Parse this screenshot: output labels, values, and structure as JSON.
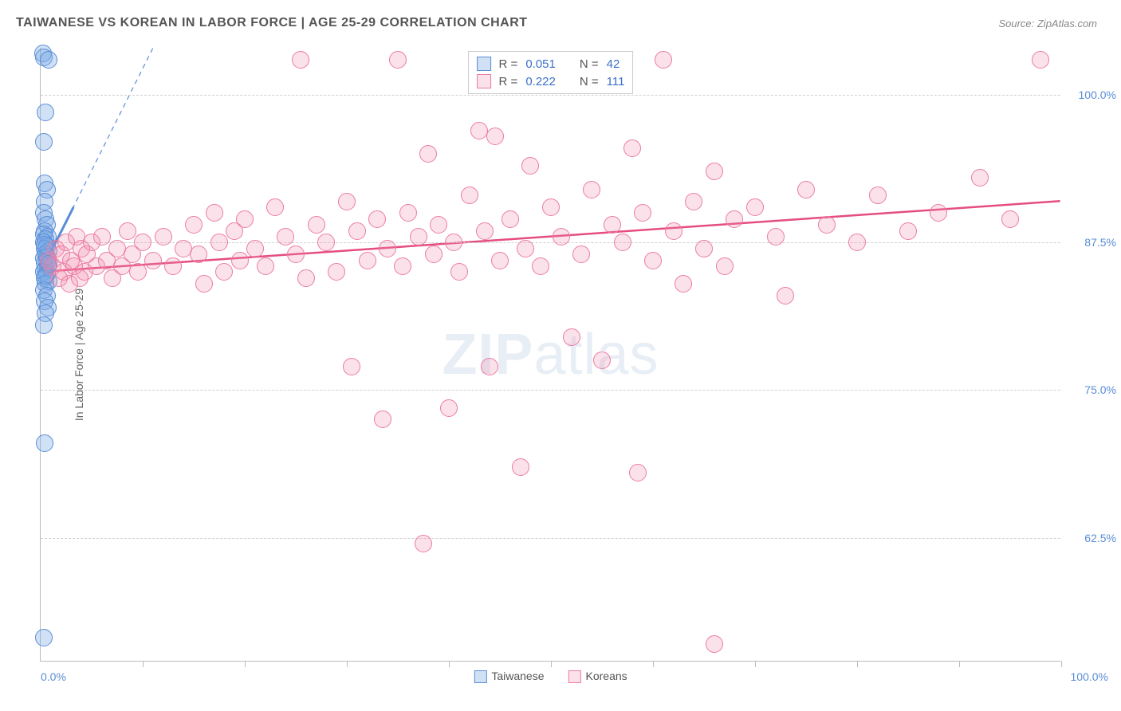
{
  "title": "TAIWANESE VS KOREAN IN LABOR FORCE | AGE 25-29 CORRELATION CHART",
  "source": "Source: ZipAtlas.com",
  "watermark": {
    "part1": "ZIP",
    "part2": "atlas"
  },
  "chart": {
    "type": "scatter",
    "y_axis_title": "In Labor Force | Age 25-29",
    "xlim": [
      0,
      100
    ],
    "ylim": [
      52,
      104
    ],
    "marker_size": 22,
    "background_color": "#ffffff",
    "grid_color": "#d0d0d0",
    "axis_color": "#bbbbbb",
    "tick_label_color": "#5b8dd6",
    "y_ticks": [
      {
        "value": 62.5,
        "label": "62.5%"
      },
      {
        "value": 75.0,
        "label": "75.0%"
      },
      {
        "value": 87.5,
        "label": "87.5%"
      },
      {
        "value": 100.0,
        "label": "100.0%"
      }
    ],
    "x_tick_positions": [
      10,
      20,
      30,
      40,
      50,
      60,
      70,
      80,
      90,
      100
    ],
    "x_axis_label_left": "0.0%",
    "x_axis_label_right": "100.0%",
    "series": [
      {
        "name": "Taiwanese",
        "color_fill": "rgba(120,170,230,0.35)",
        "color_stroke": "#5b8dd6",
        "R": "0.051",
        "N": "42",
        "trend": {
          "x1": 0,
          "y1": 85.0,
          "x2_dashed": 11,
          "y2_dashed": 104,
          "solid_x2": 3.2,
          "solid_y2": 90.5,
          "stroke": "#5b8dd6",
          "width": 2
        },
        "points": [
          [
            0.2,
            103.5
          ],
          [
            0.3,
            103.2
          ],
          [
            0.8,
            103.0
          ],
          [
            0.5,
            98.5
          ],
          [
            0.3,
            96.0
          ],
          [
            0.4,
            92.5
          ],
          [
            0.6,
            92.0
          ],
          [
            0.4,
            91.0
          ],
          [
            0.3,
            90.0
          ],
          [
            0.5,
            89.5
          ],
          [
            0.6,
            89.0
          ],
          [
            0.4,
            88.5
          ],
          [
            0.3,
            88.2
          ],
          [
            0.7,
            88.0
          ],
          [
            0.5,
            87.8
          ],
          [
            0.3,
            87.5
          ],
          [
            0.6,
            87.2
          ],
          [
            0.4,
            87.0
          ],
          [
            0.8,
            86.8
          ],
          [
            0.5,
            86.5
          ],
          [
            0.3,
            86.2
          ],
          [
            0.6,
            86.0
          ],
          [
            0.4,
            85.8
          ],
          [
            0.7,
            85.5
          ],
          [
            0.5,
            85.2
          ],
          [
            0.3,
            85.0
          ],
          [
            0.6,
            84.8
          ],
          [
            0.4,
            84.5
          ],
          [
            0.8,
            84.2
          ],
          [
            0.5,
            84.0
          ],
          [
            0.3,
            83.5
          ],
          [
            0.6,
            83.0
          ],
          [
            0.4,
            82.5
          ],
          [
            0.7,
            82.0
          ],
          [
            0.5,
            81.5
          ],
          [
            0.3,
            80.5
          ],
          [
            0.6,
            86.3
          ],
          [
            0.4,
            87.3
          ],
          [
            0.8,
            85.7
          ],
          [
            0.5,
            84.7
          ],
          [
            0.4,
            70.5
          ],
          [
            0.3,
            54.0
          ]
        ]
      },
      {
        "name": "Koreans",
        "color_fill": "rgba(240,140,170,0.25)",
        "color_stroke": "#ec7ba3",
        "R": "0.222",
        "N": "111",
        "trend": {
          "x1": 0,
          "y1": 85.0,
          "x2": 100,
          "y2": 91.0,
          "stroke": "#e54d82",
          "width": 2.5
        },
        "points": [
          [
            0.8,
            86.0
          ],
          [
            1.2,
            85.5
          ],
          [
            1.5,
            87.0
          ],
          [
            1.8,
            84.5
          ],
          [
            2.0,
            86.5
          ],
          [
            2.3,
            85.0
          ],
          [
            2.5,
            87.5
          ],
          [
            2.8,
            84.0
          ],
          [
            3.0,
            86.0
          ],
          [
            3.3,
            85.5
          ],
          [
            3.5,
            88.0
          ],
          [
            3.8,
            84.5
          ],
          [
            4.0,
            87.0
          ],
          [
            4.3,
            85.0
          ],
          [
            4.5,
            86.5
          ],
          [
            5.0,
            87.5
          ],
          [
            5.5,
            85.5
          ],
          [
            6.0,
            88.0
          ],
          [
            6.5,
            86.0
          ],
          [
            7.0,
            84.5
          ],
          [
            7.5,
            87.0
          ],
          [
            8.0,
            85.5
          ],
          [
            8.5,
            88.5
          ],
          [
            9.0,
            86.5
          ],
          [
            9.5,
            85.0
          ],
          [
            10.0,
            87.5
          ],
          [
            11.0,
            86.0
          ],
          [
            12.0,
            88.0
          ],
          [
            13.0,
            85.5
          ],
          [
            14.0,
            87.0
          ],
          [
            15.0,
            89.0
          ],
          [
            15.5,
            86.5
          ],
          [
            16.0,
            84.0
          ],
          [
            17.0,
            90.0
          ],
          [
            17.5,
            87.5
          ],
          [
            18.0,
            85.0
          ],
          [
            19.0,
            88.5
          ],
          [
            19.5,
            86.0
          ],
          [
            20.0,
            89.5
          ],
          [
            21.0,
            87.0
          ],
          [
            22.0,
            85.5
          ],
          [
            23.0,
            90.5
          ],
          [
            24.0,
            88.0
          ],
          [
            25.0,
            86.5
          ],
          [
            25.5,
            103.0
          ],
          [
            26.0,
            84.5
          ],
          [
            27.0,
            89.0
          ],
          [
            28.0,
            87.5
          ],
          [
            29.0,
            85.0
          ],
          [
            30.0,
            91.0
          ],
          [
            30.5,
            77.0
          ],
          [
            31.0,
            88.5
          ],
          [
            32.0,
            86.0
          ],
          [
            33.0,
            89.5
          ],
          [
            33.5,
            72.5
          ],
          [
            34.0,
            87.0
          ],
          [
            35.0,
            103.0
          ],
          [
            35.5,
            85.5
          ],
          [
            36.0,
            90.0
          ],
          [
            37.0,
            88.0
          ],
          [
            37.5,
            62.0
          ],
          [
            38.0,
            95.0
          ],
          [
            38.5,
            86.5
          ],
          [
            39.0,
            89.0
          ],
          [
            40.0,
            73.5
          ],
          [
            40.5,
            87.5
          ],
          [
            41.0,
            85.0
          ],
          [
            42.0,
            91.5
          ],
          [
            43.0,
            97.0
          ],
          [
            43.5,
            88.5
          ],
          [
            44.0,
            77.0
          ],
          [
            44.5,
            96.5
          ],
          [
            45.0,
            86.0
          ],
          [
            46.0,
            89.5
          ],
          [
            47.0,
            68.5
          ],
          [
            47.5,
            87.0
          ],
          [
            48.0,
            94.0
          ],
          [
            49.0,
            85.5
          ],
          [
            50.0,
            90.5
          ],
          [
            51.0,
            88.0
          ],
          [
            52.0,
            79.5
          ],
          [
            53.0,
            86.5
          ],
          [
            54.0,
            92.0
          ],
          [
            55.0,
            77.5
          ],
          [
            56.0,
            89.0
          ],
          [
            57.0,
            87.5
          ],
          [
            58.0,
            95.5
          ],
          [
            58.5,
            68.0
          ],
          [
            59.0,
            90.0
          ],
          [
            60.0,
            86.0
          ],
          [
            61.0,
            103.0
          ],
          [
            62.0,
            88.5
          ],
          [
            63.0,
            84.0
          ],
          [
            64.0,
            91.0
          ],
          [
            65.0,
            87.0
          ],
          [
            66.0,
            93.5
          ],
          [
            67.0,
            85.5
          ],
          [
            68.0,
            89.5
          ],
          [
            70.0,
            90.5
          ],
          [
            72.0,
            88.0
          ],
          [
            73.0,
            83.0
          ],
          [
            75.0,
            92.0
          ],
          [
            77.0,
            89.0
          ],
          [
            80.0,
            87.5
          ],
          [
            82.0,
            91.5
          ],
          [
            85.0,
            88.5
          ],
          [
            88.0,
            90.0
          ],
          [
            92.0,
            93.0
          ],
          [
            95.0,
            89.5
          ],
          [
            98.0,
            103.0
          ],
          [
            66.0,
            53.5
          ]
        ]
      }
    ]
  },
  "stats_box": {
    "rows": [
      {
        "swatch_fill": "rgba(120,170,230,0.35)",
        "swatch_stroke": "#5b8dd6",
        "r_label": "R =",
        "r_val": "0.051",
        "n_label": "N =",
        "n_val": "42"
      },
      {
        "swatch_fill": "rgba(240,140,170,0.25)",
        "swatch_stroke": "#ec7ba3",
        "r_label": "R =",
        "r_val": "0.222",
        "n_label": "N =",
        "n_val": "111"
      }
    ]
  },
  "bottom_legend": [
    {
      "swatch_fill": "rgba(120,170,230,0.35)",
      "swatch_stroke": "#5b8dd6",
      "label": "Taiwanese"
    },
    {
      "swatch_fill": "rgba(240,140,170,0.25)",
      "swatch_stroke": "#ec7ba3",
      "label": "Koreans"
    }
  ]
}
